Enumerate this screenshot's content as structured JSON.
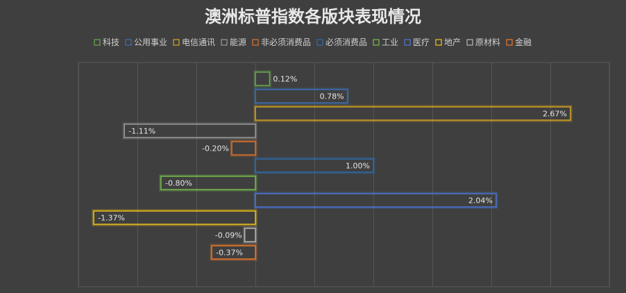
{
  "chart_data": {
    "type": "bar",
    "orientation": "horizontal",
    "title": "澳洲标普指数各版块表现情况",
    "categories": [
      "科技",
      "公用事业",
      "电信通讯",
      "能源",
      "非必须消费品",
      "必须消费品",
      "工业",
      "医疗",
      "地产",
      "原材料",
      "金融"
    ],
    "values": [
      0.12,
      0.78,
      2.67,
      -1.11,
      -0.2,
      1.0,
      -0.8,
      2.04,
      -1.37,
      -0.09,
      -0.37
    ],
    "value_labels": [
      "0.12%",
      "0.78%",
      "2.67%",
      "-1.11%",
      "-0.20%",
      "1.00%",
      "-0.80%",
      "2.04%",
      "-1.37%",
      "-0.09%",
      "-0.37%"
    ],
    "colors": [
      "#6aa84f",
      "#3d6fb6",
      "#d9a521",
      "#9a9a9a",
      "#e0742a",
      "#2f6bb0",
      "#78c04a",
      "#4a78d8",
      "#f0c419",
      "#b8b8b8",
      "#f07a2a"
    ],
    "xlim": [
      -1.5,
      3.0
    ],
    "grid": true,
    "legend_position": "top"
  }
}
